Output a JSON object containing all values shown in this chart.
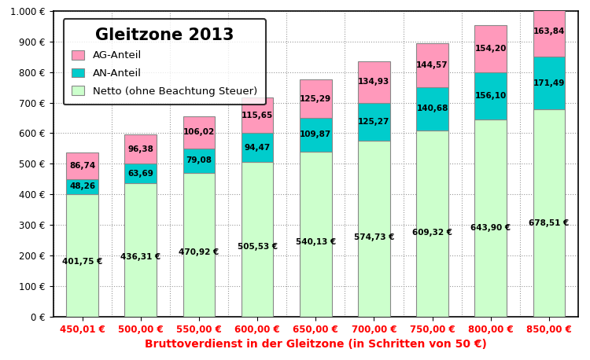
{
  "categories": [
    "450,01 €",
    "500,00 €",
    "550,00 €",
    "600,00 €",
    "650,00 €",
    "700,00 €",
    "750,00 €",
    "800,00 €",
    "850,00 €"
  ],
  "netto": [
    401.75,
    436.31,
    470.92,
    505.53,
    540.13,
    574.73,
    609.32,
    643.9,
    678.51
  ],
  "an_anteil": [
    48.26,
    63.69,
    79.08,
    94.47,
    109.87,
    125.27,
    140.68,
    156.1,
    171.49
  ],
  "ag_anteil": [
    86.74,
    96.38,
    106.02,
    115.65,
    125.29,
    134.93,
    144.57,
    154.2,
    163.84
  ],
  "netto_color": "#ccffcc",
  "an_color": "#00cccc",
  "ag_color": "#ff99bb",
  "title": "Gleitzone 2013",
  "xlabel": "Bruttoverdienst in der Gleitzone (in Schritten von 50 €)",
  "ylim": [
    0,
    1000
  ],
  "yticks": [
    0,
    100,
    200,
    300,
    400,
    500,
    600,
    700,
    800,
    900,
    1000
  ],
  "ytick_labels": [
    "0 €",
    "100 €",
    "200 €",
    "300 €",
    "400 €",
    "500 €",
    "600 €",
    "700 €",
    "800 €",
    "900 €",
    "1.000 €"
  ],
  "legend_labels": [
    "AG-Anteil",
    "AN-Anteil",
    "Netto (ohne Beachtung Steuer)"
  ],
  "background_color": "#ffffff",
  "title_fontsize": 15,
  "bar_width": 0.55
}
